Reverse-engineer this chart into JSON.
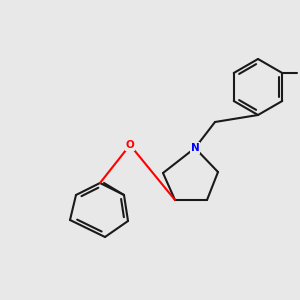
{
  "bg_color": "#e8e8e8",
  "bond_color": "#1a1a1a",
  "N_color": "#0000ff",
  "O_color": "#ff0000",
  "font_size": 7.5,
  "lw": 1.5
}
